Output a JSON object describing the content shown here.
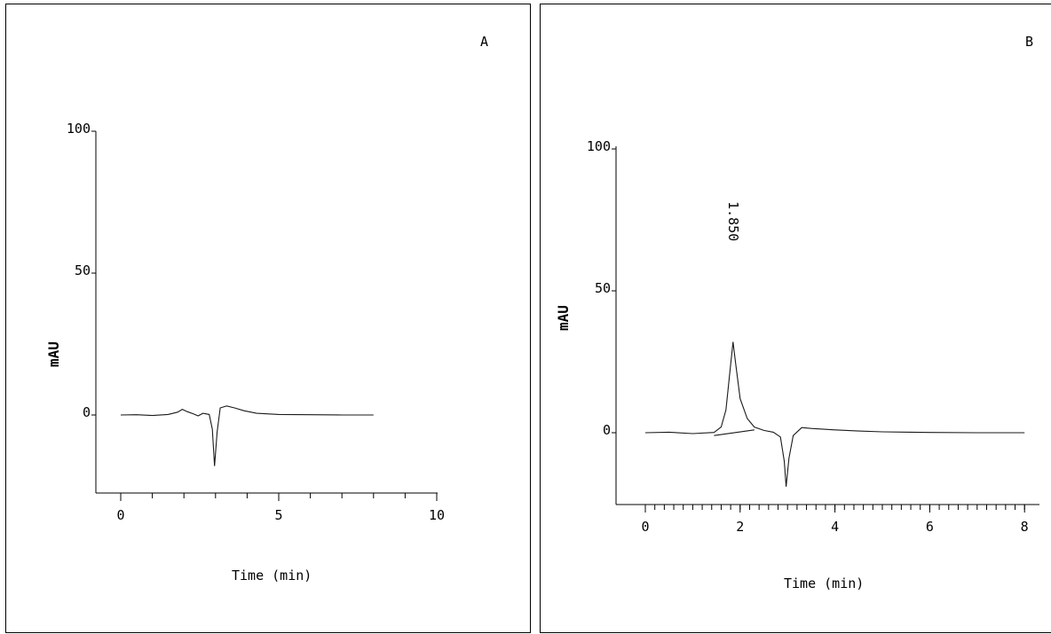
{
  "chart_data": [
    {
      "type": "line",
      "panel_label": "A",
      "xlabel": "Time (min)",
      "ylabel": "mAU",
      "xlim": [
        0,
        10
      ],
      "ylim": [
        -25,
        100
      ],
      "x_ticks": [
        "0",
        "5",
        "10"
      ],
      "y_ticks": [
        "0",
        "50",
        "100"
      ],
      "annotations": [],
      "series": [
        {
          "values_xy": [
            [
              0,
              0
            ],
            [
              0.5,
              0.1
            ],
            [
              1.0,
              -0.2
            ],
            [
              1.5,
              0.2
            ],
            [
              1.8,
              1.0
            ],
            [
              1.95,
              2.0
            ],
            [
              2.1,
              1.2
            ],
            [
              2.3,
              0.4
            ],
            [
              2.45,
              -0.3
            ],
            [
              2.6,
              0.6
            ],
            [
              2.8,
              0.2
            ],
            [
              2.9,
              -5
            ],
            [
              2.97,
              -18
            ],
            [
              3.05,
              -6
            ],
            [
              3.15,
              2.5
            ],
            [
              3.35,
              3.2
            ],
            [
              3.6,
              2.5
            ],
            [
              3.9,
              1.5
            ],
            [
              4.3,
              0.6
            ],
            [
              5,
              0.2
            ],
            [
              6,
              0.1
            ],
            [
              7,
              0
            ],
            [
              8,
              0
            ]
          ]
        }
      ]
    },
    {
      "type": "line",
      "panel_label": "B",
      "xlabel": "Time (min)",
      "ylabel": "mAU",
      "xlim": [
        0,
        8
      ],
      "ylim": [
        -25,
        100
      ],
      "x_ticks": [
        "0",
        "2",
        "4",
        "6",
        "8"
      ],
      "y_ticks": [
        "0",
        "50",
        "100"
      ],
      "annotations": [
        "1.850"
      ],
      "peak": {
        "x": 1.85,
        "y": 32
      },
      "series": [
        {
          "values_xy": [
            [
              0,
              0
            ],
            [
              0.5,
              0.2
            ],
            [
              1.0,
              -0.3
            ],
            [
              1.45,
              0.1
            ],
            [
              1.6,
              2
            ],
            [
              1.7,
              8
            ],
            [
              1.8,
              24
            ],
            [
              1.85,
              32
            ],
            [
              1.9,
              25
            ],
            [
              2.0,
              12
            ],
            [
              2.15,
              5
            ],
            [
              2.3,
              2
            ],
            [
              2.5,
              0.8
            ],
            [
              2.7,
              0.2
            ],
            [
              2.85,
              -1.5
            ],
            [
              2.93,
              -10
            ],
            [
              2.97,
              -19
            ],
            [
              3.03,
              -9
            ],
            [
              3.12,
              -1
            ],
            [
              3.3,
              1.8
            ],
            [
              3.5,
              1.5
            ],
            [
              4.0,
              1.0
            ],
            [
              4.5,
              0.6
            ],
            [
              5,
              0.3
            ],
            [
              6,
              0.1
            ],
            [
              7,
              0
            ],
            [
              8,
              0
            ]
          ]
        }
      ],
      "baseline": [
        [
          1.45,
          -1
        ],
        [
          2.3,
          1
        ]
      ]
    }
  ]
}
